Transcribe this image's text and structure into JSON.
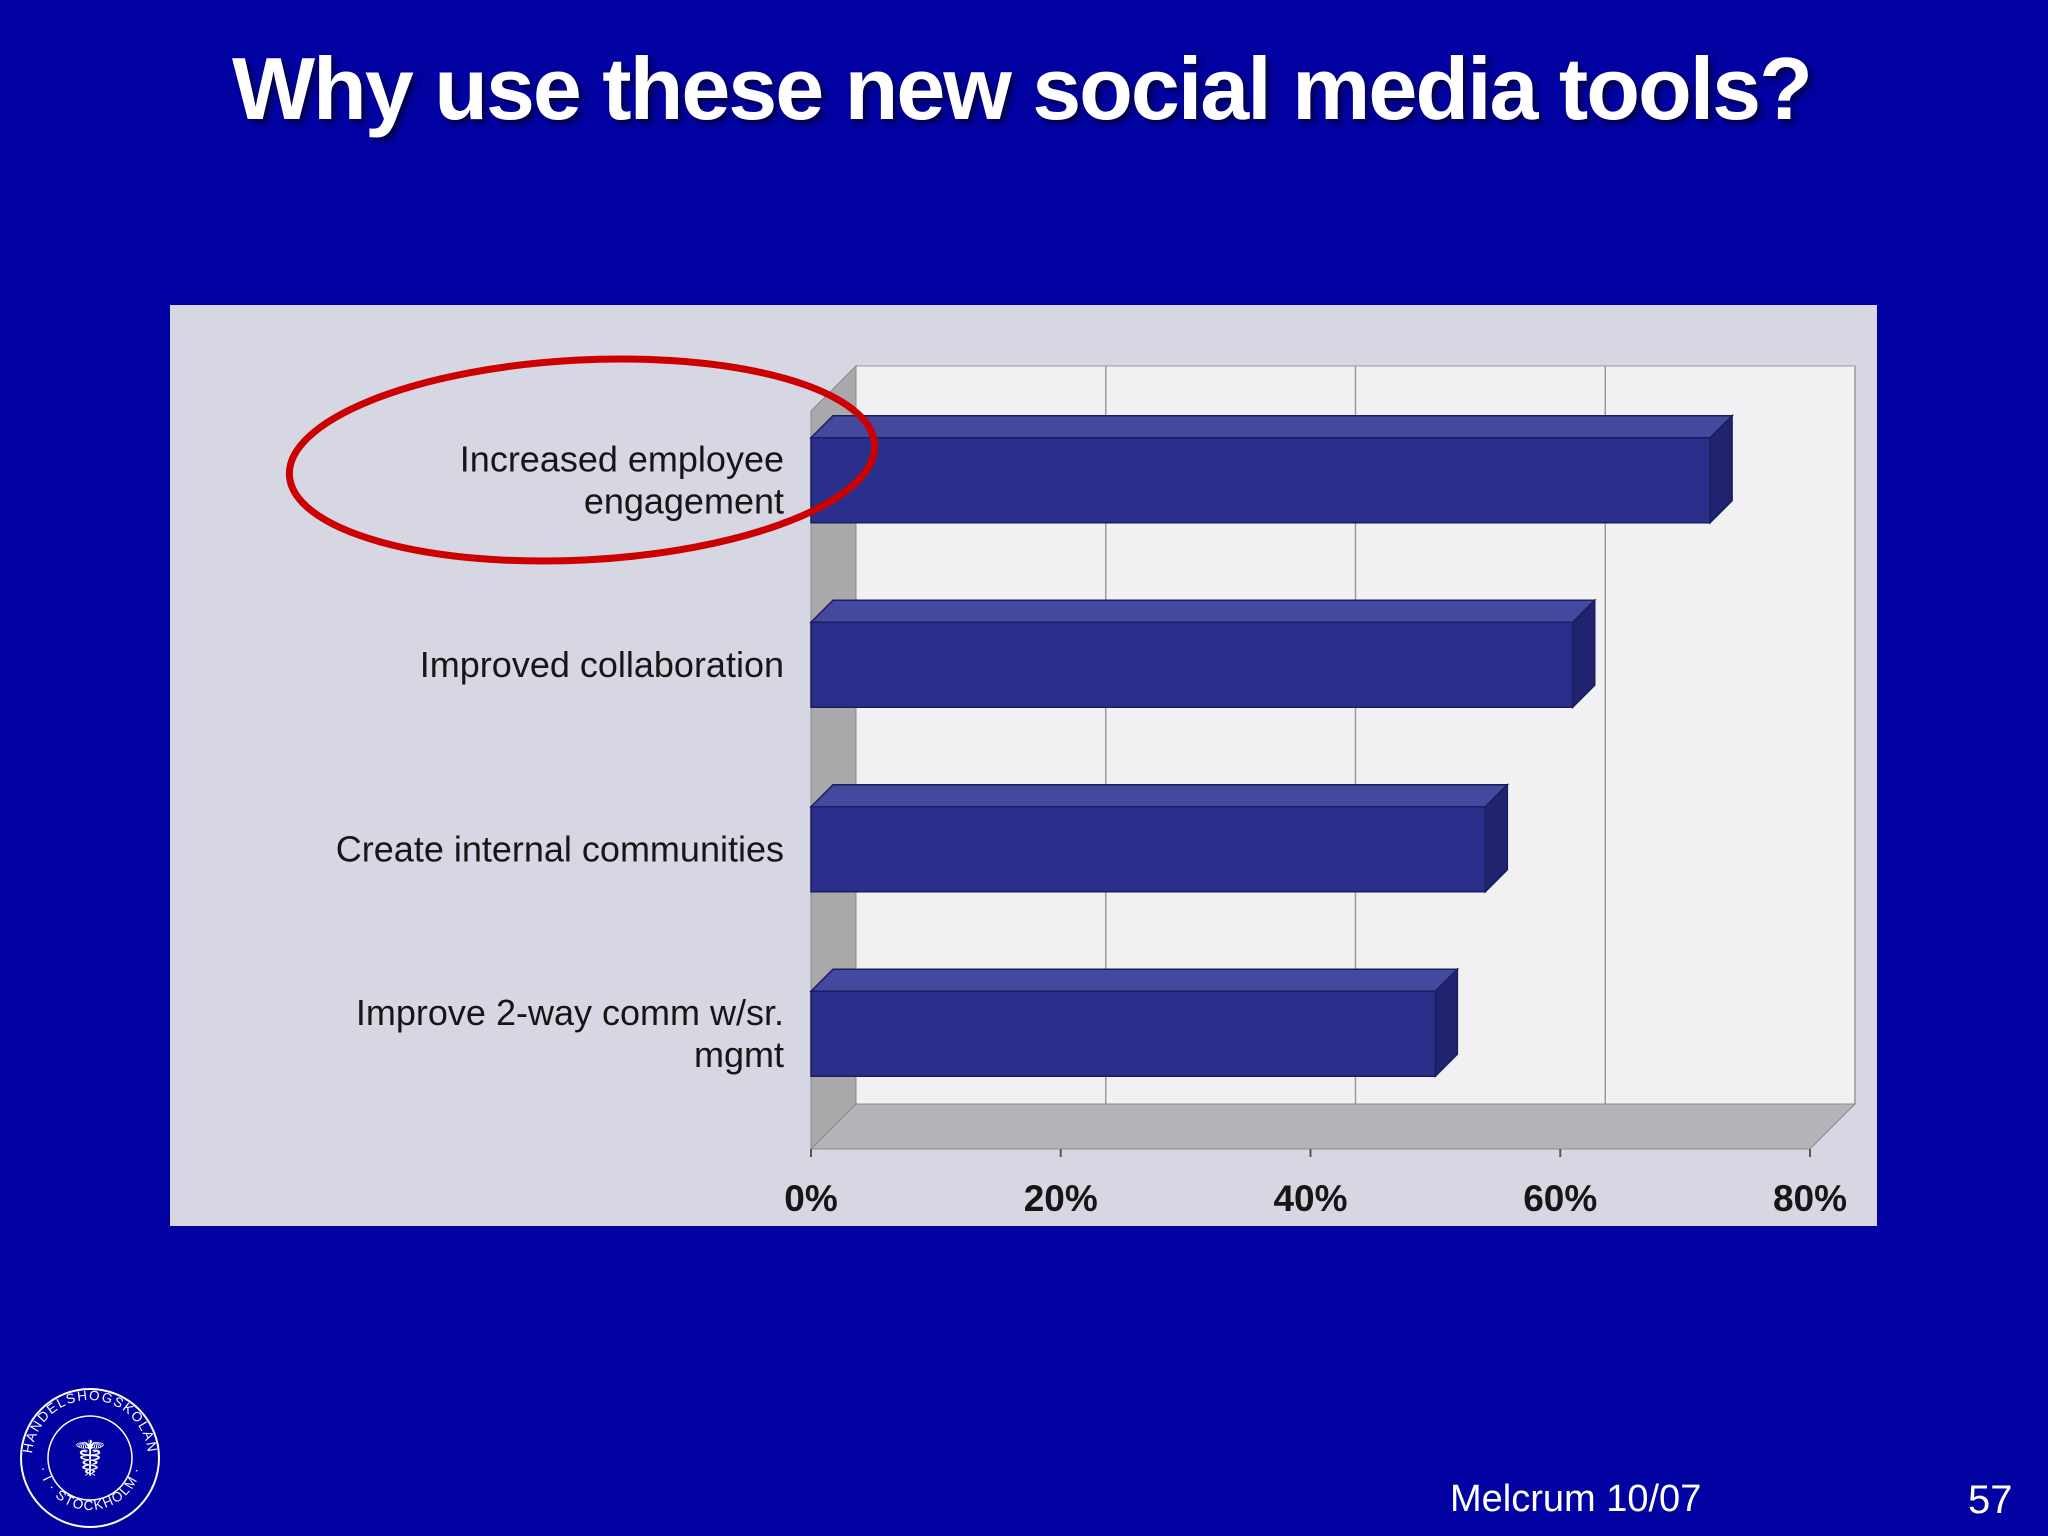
{
  "slide": {
    "title": "Why use these new social media tools?"
  },
  "footer": {
    "source": "Melcrum 10/07",
    "page_number": "57"
  },
  "logo": {
    "text_top": "HANDELSHÖGSKOLAN",
    "text_bottom": "· I · STOCKHOLM ·"
  },
  "colors": {
    "background": "#0202A3",
    "panel": "#D7D7E4",
    "plot_wall": "#F1F1F3",
    "bar_front": "#2A2F8C",
    "bar_top": "#44499F",
    "bar_side": "#1F2370",
    "highlight": "#CC0000"
  },
  "chart_data": {
    "type": "bar",
    "orientation": "horizontal",
    "title": "",
    "categories": [
      "Increased employee engagement",
      "Improved collaboration",
      "Create internal communities",
      "Improve 2-way comm w/sr. mgmt"
    ],
    "category_label_lines": [
      [
        "Increased employee",
        "engagement"
      ],
      [
        "Improved collaboration"
      ],
      [
        "Create internal communities"
      ],
      [
        "Improve 2-way comm w/sr.",
        "mgmt"
      ]
    ],
    "values": [
      72,
      61,
      54,
      50
    ],
    "unit": "%",
    "xlim": [
      0,
      80
    ],
    "xticks": [
      0,
      20,
      40,
      60,
      80
    ],
    "xtick_labels": [
      "0%",
      "20%",
      "40%",
      "60%",
      "80%"
    ],
    "grid": true,
    "style": "3d",
    "legend": false,
    "annotation": {
      "type": "ellipse",
      "target": "Increased employee engagement",
      "color": "#CC0000"
    }
  }
}
